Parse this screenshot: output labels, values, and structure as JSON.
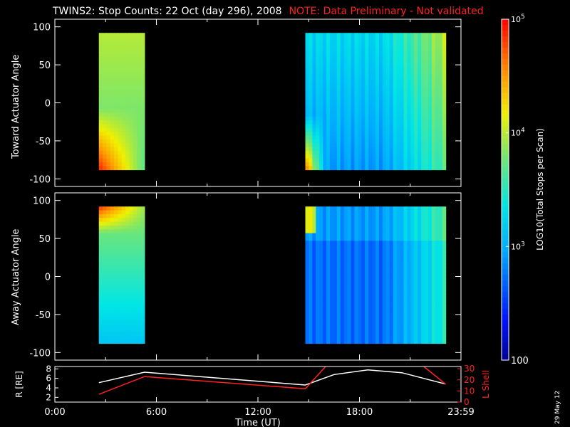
{
  "title": "TWINS2: Stop Counts: 22 Oct (day 296), 2008",
  "note": "NOTE: Data Preliminary - Not validated",
  "date_stamp": "29 May 12",
  "colors": {
    "background": "#000000",
    "axis": "#ffffff",
    "note": "#ff2020",
    "lshell": "#ff2020"
  },
  "chart_data": [
    {
      "type": "heatmap",
      "name": "toward",
      "ylabel": "Toward Actuator Angle",
      "xlim": [
        0,
        24
      ],
      "ylim": [
        -110,
        110
      ],
      "yticks": [
        -100,
        -50,
        0,
        50,
        100
      ],
      "data_intervals_hours": [
        [
          2.6,
          5.3
        ],
        [
          14.8,
          23.1
        ]
      ],
      "y_extent": [
        -88,
        92
      ]
    },
    {
      "type": "heatmap",
      "name": "away",
      "ylabel": "Away Actuator Angle",
      "xlim": [
        0,
        24
      ],
      "ylim": [
        -110,
        110
      ],
      "yticks": [
        -100,
        -50,
        0,
        50,
        100
      ],
      "data_intervals_hours": [
        [
          2.6,
          5.3
        ],
        [
          14.8,
          23.1
        ]
      ],
      "y_extent": [
        -88,
        92
      ]
    },
    {
      "type": "line",
      "name": "orbit",
      "ylabel_left": "R [RE]",
      "ylabel_right": "L Shell",
      "xlabel": "Time (UT)",
      "xlim": [
        0,
        24
      ],
      "xticks": [
        0,
        6,
        12,
        18,
        24
      ],
      "xtick_labels": [
        "0:00",
        "6:00",
        "12:00",
        "18:00",
        "23:59"
      ],
      "ylim_left": [
        1,
        8.5
      ],
      "yticks_left": [
        2,
        4,
        6,
        8
      ],
      "ylim_right": [
        0,
        32
      ],
      "yticks_right": [
        0,
        10,
        20,
        30
      ],
      "series": [
        {
          "color": "#ffffff",
          "axis": "left",
          "x": [
            2.6,
            5.3,
            14.8,
            16.5,
            18.5,
            20.5,
            23.1
          ],
          "y": [
            5.1,
            7.3,
            4.6,
            6.8,
            7.8,
            7.2,
            4.8
          ]
        },
        {
          "color": "#ff2020",
          "axis": "right",
          "x": [
            2.6,
            5.3,
            14.8,
            16.0
          ],
          "y": [
            7,
            23,
            12,
            32
          ]
        },
        {
          "color": "#ff2020",
          "axis": "right",
          "x": [
            21.8,
            23.1
          ],
          "y": [
            32,
            16
          ]
        }
      ]
    }
  ],
  "colorbar": {
    "label": "LOG10(Total Stops per Scan)",
    "scale": "log",
    "range": [
      100,
      100000
    ],
    "tick_labels": [
      "100",
      "10^3",
      "10^4",
      "10^5"
    ]
  }
}
